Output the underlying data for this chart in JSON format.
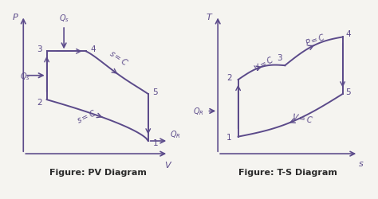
{
  "color": "#5b4a8a",
  "bg_color": "#f5f4f0",
  "fig_title_pv": "Figure: PV Diagram",
  "fig_title_ts": "Figure: T-S Diagram",
  "title_fontsize": 8,
  "label_fontsize": 8,
  "point_label_fontsize": 7.5,
  "annotation_fontsize": 7
}
